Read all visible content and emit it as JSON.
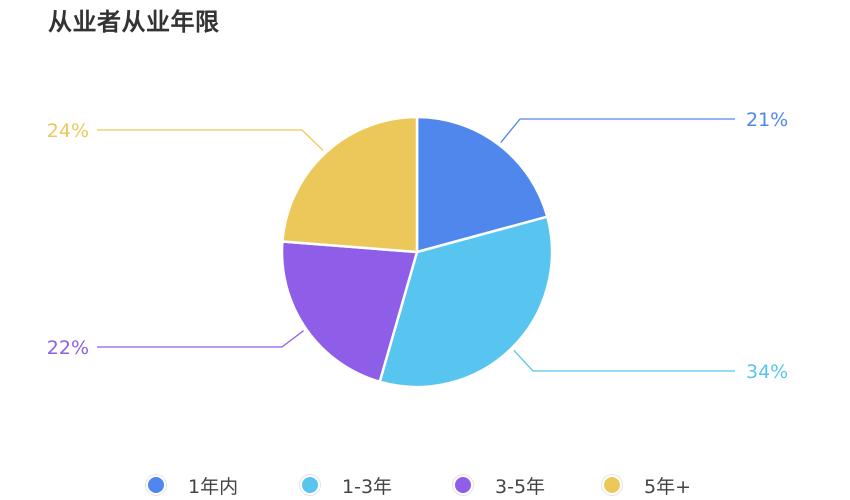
{
  "title": "从业者从业年限",
  "chart_data": {
    "type": "pie",
    "title": "从业者从业年限",
    "categories": [
      "1年内",
      "1-3年",
      "3-5年",
      "5年+"
    ],
    "values": [
      21,
      34,
      22,
      24
    ],
    "labels": [
      "21%",
      "34%",
      "22%",
      "24%"
    ],
    "colors": [
      "#5087ec",
      "#58c5f0",
      "#8f5ee9",
      "#ecc85b"
    ],
    "legend": "bottom"
  }
}
